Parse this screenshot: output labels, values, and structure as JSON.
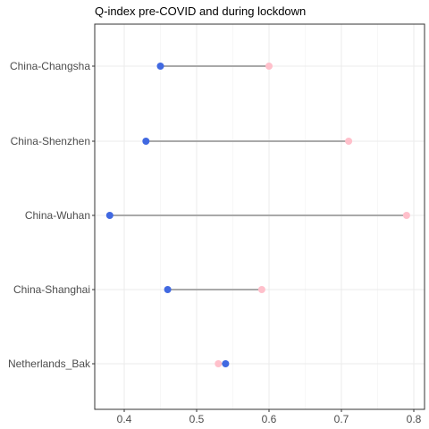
{
  "chart_data": {
    "type": "dumbbell",
    "title": "Q-index pre-COVID and during lockdown",
    "xlabel": "",
    "ylabel": "",
    "xlim": [
      0.355,
      0.8
    ],
    "x_ticks": [
      "0.4",
      "0.5",
      "0.6",
      "0.7",
      "0.8"
    ],
    "x_tick_values": [
      0.4,
      0.5,
      0.6,
      0.7,
      0.8
    ],
    "grid": true,
    "legend": "none",
    "categories": [
      "China-Changsha",
      "China-Shenzhen",
      "China-Wuhan",
      "China-Shanghai",
      "Netherlands_Bak"
    ],
    "series": [
      {
        "values": [
          0.45,
          0.43,
          0.38,
          0.46,
          0.54
        ],
        "color": "#4169e1"
      },
      {
        "values": [
          0.6,
          0.71,
          0.79,
          0.59,
          0.53
        ],
        "color": "#ffc0cb"
      }
    ],
    "segment_color": "#a9a9a9"
  }
}
